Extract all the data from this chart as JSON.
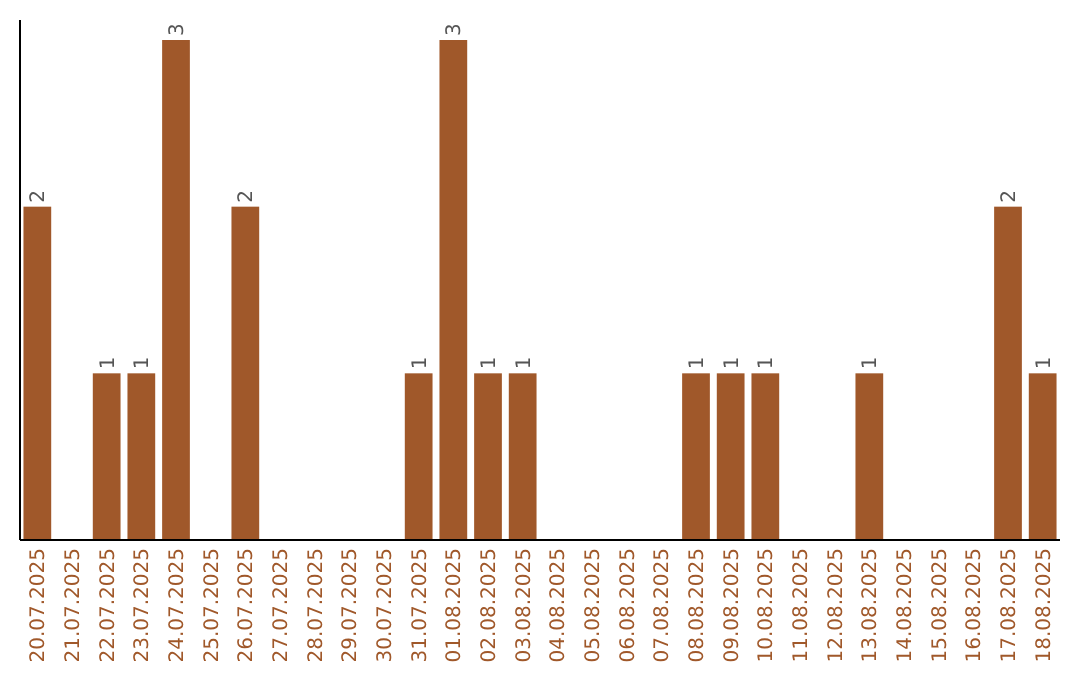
{
  "chart_data": {
    "type": "bar",
    "categories": [
      "20.07.2025",
      "21.07.2025",
      "22.07.2025",
      "23.07.2025",
      "24.07.2025",
      "25.07.2025",
      "26.07.2025",
      "27.07.2025",
      "28.07.2025",
      "29.07.2025",
      "30.07.2025",
      "31.07.2025",
      "01.08.2025",
      "02.08.2025",
      "03.08.2025",
      "04.08.2025",
      "05.08.2025",
      "06.08.2025",
      "07.08.2025",
      "08.08.2025",
      "09.08.2025",
      "10.08.2025",
      "11.08.2025",
      "12.08.2025",
      "13.08.2025",
      "14.08.2025",
      "15.08.2025",
      "16.08.2025",
      "17.08.2025",
      "18.08.2025"
    ],
    "values": [
      2,
      0,
      1,
      1,
      3,
      0,
      2,
      0,
      0,
      0,
      0,
      1,
      3,
      1,
      1,
      0,
      0,
      0,
      0,
      1,
      1,
      1,
      0,
      0,
      1,
      0,
      0,
      0,
      2,
      1
    ],
    "value_labels": [
      "2",
      null,
      "1",
      "1",
      "3",
      null,
      "2",
      null,
      null,
      null,
      null,
      "1",
      "3",
      "1",
      "1",
      null,
      null,
      null,
      null,
      "1",
      "1",
      "1",
      null,
      null,
      "1",
      null,
      null,
      null,
      "2",
      "1"
    ],
    "color": "#a0582a"
  }
}
